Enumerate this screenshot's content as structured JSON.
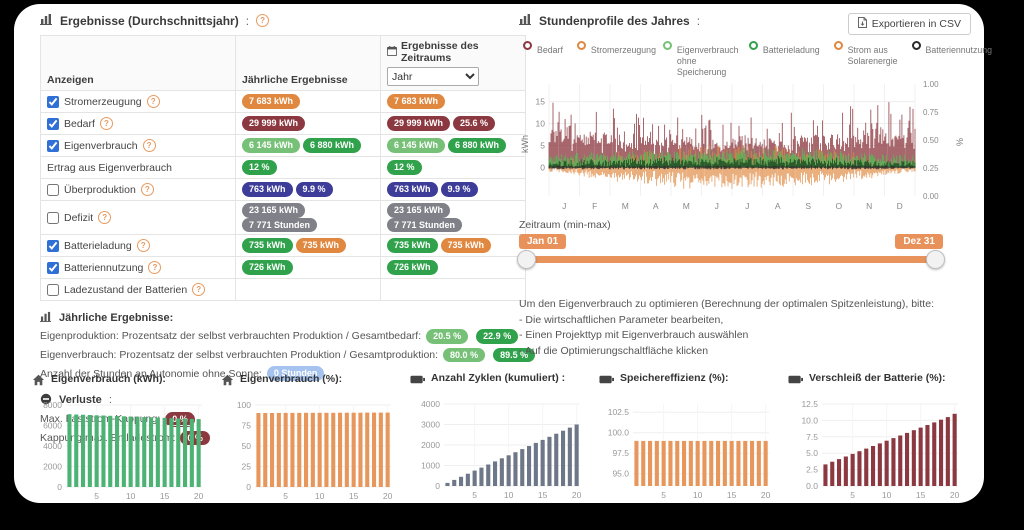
{
  "colors": {
    "orange": "#e0883f",
    "darkred": "#8c3840",
    "lightgreen": "#76c077",
    "green": "#31a24c",
    "indigo": "#3d3d99",
    "gray": "#808089",
    "lightblue": "#a6c3f0",
    "profile_green": "#57b554",
    "profile_darkgreen": "#1d4a22",
    "black": "#2a2a2a",
    "bar_green": "#4db374",
    "bar_orange": "#e8975c",
    "bar_gray": "#6e7787",
    "bar_darkred": "#8c3840",
    "slider_orange": "#e8915a",
    "accent_blue": "#2f6fd6"
  },
  "results_table": {
    "title": "Ergebnisse (Durchschnittsjahr)",
    "title_suffix": ":",
    "columns": {
      "show": "Anzeigen",
      "annual": "Jährliche Ergebnisse",
      "period": "Ergebnisse des Zeitraums",
      "period_select": "Jahr"
    },
    "rows": [
      {
        "label": "Stromerzeugung",
        "checkbox": true,
        "help": true,
        "annual": [
          {
            "text": "7 683 kWh",
            "color": "orange"
          }
        ],
        "period": [
          {
            "text": "7 683 kWh",
            "color": "orange"
          }
        ]
      },
      {
        "label": "Bedarf",
        "checkbox": true,
        "help": true,
        "annual": [
          {
            "text": "29 999 kWh",
            "color": "darkred"
          }
        ],
        "period": [
          {
            "text": "29 999 kWh",
            "color": "darkred"
          },
          {
            "text": "25.6 %",
            "color": "darkred"
          }
        ]
      },
      {
        "label": "Eigenverbrauch",
        "checkbox": true,
        "help": true,
        "annual": [
          {
            "text": "6 145 kWh",
            "color": "lightgreen"
          },
          {
            "text": "6 880 kWh",
            "color": "green"
          }
        ],
        "period": [
          {
            "text": "6 145 kWh",
            "color": "lightgreen"
          },
          {
            "text": "6 880 kWh",
            "color": "green"
          }
        ]
      },
      {
        "label": "Ertrag aus Eigenverbrauch",
        "checkbox": null,
        "help": false,
        "annual": [
          {
            "text": "12 %",
            "color": "green"
          }
        ],
        "period": [
          {
            "text": "12 %",
            "color": "green"
          }
        ]
      },
      {
        "label": "Überproduktion",
        "checkbox": false,
        "help": true,
        "annual": [
          {
            "text": "763 kWh",
            "color": "indigo"
          },
          {
            "text": "9.9 %",
            "color": "indigo"
          }
        ],
        "period": [
          {
            "text": "763 kWh",
            "color": "indigo"
          },
          {
            "text": "9.9 %",
            "color": "indigo"
          }
        ]
      },
      {
        "label": "Defizit",
        "checkbox": false,
        "help": true,
        "annual": [
          {
            "text": "23 165 kWh",
            "color": "gray"
          },
          {
            "text": "7 771 Stunden",
            "color": "gray"
          }
        ],
        "period": [
          {
            "text": "23 165 kWh",
            "color": "gray"
          },
          {
            "text": "7 771 Stunden",
            "color": "gray"
          }
        ]
      },
      {
        "label": "Batterieladung",
        "checkbox": true,
        "help": true,
        "annual": [
          {
            "text": "735 kWh",
            "color": "green"
          },
          {
            "text": "735 kWh",
            "color": "orange"
          }
        ],
        "period": [
          {
            "text": "735 kWh",
            "color": "green"
          },
          {
            "text": "735 kWh",
            "color": "orange"
          }
        ]
      },
      {
        "label": "Batteriennutzung",
        "checkbox": true,
        "help": true,
        "annual": [
          {
            "text": "726 kWh",
            "color": "green"
          }
        ],
        "period": [
          {
            "text": "726 kWh",
            "color": "green"
          }
        ]
      },
      {
        "label": "Ladezustand der Batterien",
        "checkbox": false,
        "help": true,
        "annual": [],
        "period": []
      }
    ]
  },
  "annual_summary": {
    "title": "Jährliche Ergebnisse:",
    "lines": [
      {
        "text": "Eigenproduktion: Prozentsatz der selbst verbrauchten Produktion / Gesamtbedarf:",
        "badges": [
          {
            "text": "20.5 %",
            "color": "lightgreen"
          },
          {
            "text": "22.9 %",
            "color": "green"
          }
        ]
      },
      {
        "text": "Eigenverbrauch: Prozentsatz der selbst verbrauchten Produktion / Gesamtproduktion:",
        "badges": [
          {
            "text": "80.0 %",
            "color": "lightgreen"
          },
          {
            "text": "89.5 %",
            "color": "green"
          }
        ]
      },
      {
        "text": "Anzahl der Stunden an Autonomie ohne Sonne:",
        "badges": [
          {
            "text": "0 Stunden",
            "color": "lightblue"
          }
        ]
      }
    ]
  },
  "losses": {
    "title": "Verluste",
    "title_suffix": ":",
    "lines": [
      {
        "text": "Max. Laststrom-Kappung:",
        "badges": [
          {
            "text": "0 %",
            "color": "darkred"
          }
        ]
      },
      {
        "text": "Kappung max. Entladestrom:",
        "badges": [
          {
            "text": "0 %",
            "color": "darkred"
          }
        ]
      }
    ]
  },
  "hourly_profile": {
    "title": "Stundenprofile des Jahres",
    "title_suffix": ":",
    "export_button": "Exportieren in CSV",
    "legend": [
      {
        "label": "Bedarf",
        "color": "darkred"
      },
      {
        "label": "Stromerzeugung",
        "color": "orange"
      },
      {
        "label": "Eigenverbrauch ohne Speicherung",
        "color": "lightgreen"
      },
      {
        "label": "Batterieladung",
        "color": "green"
      },
      {
        "label": "Strom aus Solarenergie",
        "color": "orange"
      },
      {
        "label": "Batteriennutzung",
        "color": "black"
      }
    ],
    "seed": 987654321,
    "chart_data": {
      "type": "area",
      "description": "Dense hourly profile over one year. Bedarf (dark red) spikes 3-18 kWh all year; Eigenverbrauch ohne Speicherung (light green) 0-5 kWh; Batterieladung (dark green) 0-3 kWh near baseline; Stromerzeugung/Solar (orange) plotted negative to about -5 kWh, strongest March-October, plus positive orange spikes mid-year; Batteriennutzung (black) close to 0.",
      "x_months": [
        "J",
        "F",
        "M",
        "A",
        "M",
        "J",
        "J",
        "A",
        "S",
        "O",
        "N",
        "D"
      ],
      "y_left": {
        "label": "kWh",
        "ticks": [
          0,
          5,
          10,
          15
        ],
        "range": [
          -6.5,
          19
        ]
      },
      "y_right": {
        "label": "%",
        "ticks": [
          "0.00",
          "0.25",
          "0.50",
          "0.75",
          "1.00"
        ]
      }
    },
    "slider": {
      "label": "Zeitraum (min-max)",
      "min_label": "Jan 01",
      "max_label": "Dez 31"
    }
  },
  "optimization_note": {
    "lines": [
      "Um den Eigenverbrauch zu optimieren (Berechnung der optimalen Spitzenleistung), bitte:",
      "- Die wirtschaftlichen Parameter bearbeiten,",
      "- Einen Projekttyp mit Eigenverbrauch auswählen",
      "- Auf die Optimierungschaltfläche klicken"
    ]
  },
  "mini_charts": [
    {
      "title": "Eigenverbrauch (kWh):",
      "icon": "house-icon",
      "color": "bar_green",
      "chart_data": {
        "type": "bar",
        "xlabel_ticks": [
          5,
          10,
          15,
          20
        ],
        "ymin": 0,
        "ymax": 8000,
        "yticks": [
          {
            "v": 0,
            "l": "0"
          },
          {
            "v": 2000,
            "l": "2000"
          },
          {
            "v": 4000,
            "l": "4000"
          },
          {
            "v": 6000,
            "l": "6000"
          },
          {
            "v": 8000,
            "l": "8000"
          }
        ],
        "values": [
          7100,
          7075,
          7050,
          7024,
          6999,
          6974,
          6949,
          6923,
          6898,
          6873,
          6848,
          6822,
          6797,
          6772,
          6747,
          6721,
          6696,
          6671,
          6646,
          6620
        ]
      }
    },
    {
      "title": "Eigenverbrauch (%):",
      "icon": "house-icon",
      "color": "bar_orange",
      "chart_data": {
        "type": "bar",
        "xlabel_ticks": [
          5,
          10,
          15,
          20
        ],
        "ymin": 0,
        "ymax": 100,
        "yticks": [
          {
            "v": 0,
            "l": "0"
          },
          {
            "v": 25,
            "l": "25"
          },
          {
            "v": 50,
            "l": "50"
          },
          {
            "v": 75,
            "l": "75"
          },
          {
            "v": 100,
            "l": "100"
          }
        ],
        "values": [
          90.3,
          90.3,
          90.3,
          90.4,
          90.4,
          90.4,
          90.4,
          90.5,
          90.5,
          90.5,
          90.5,
          90.5,
          90.6,
          90.6,
          90.6,
          90.6,
          90.7,
          90.7,
          90.7,
          90.7
        ]
      }
    },
    {
      "title": "Anzahl Zyklen (kumuliert) :",
      "icon": "battery-icon",
      "color": "bar_gray",
      "chart_data": {
        "type": "bar",
        "xlabel_ticks": [
          5,
          10,
          15,
          20
        ],
        "ymin": 0,
        "ymax": 4000,
        "yticks": [
          {
            "v": 0,
            "l": "0"
          },
          {
            "v": 1000,
            "l": "1000"
          },
          {
            "v": 2000,
            "l": "2000"
          },
          {
            "v": 3000,
            "l": "3000"
          },
          {
            "v": 4000,
            "l": "4000"
          }
        ],
        "values": [
          150,
          300,
          450,
          600,
          750,
          900,
          1050,
          1200,
          1350,
          1500,
          1650,
          1800,
          1950,
          2100,
          2250,
          2400,
          2550,
          2700,
          2850,
          3000
        ]
      }
    },
    {
      "title": "Speichereffizienz (%):",
      "icon": "battery-icon",
      "color": "bar_orange",
      "chart_data": {
        "type": "bar",
        "xlabel_ticks": [
          5,
          10,
          15,
          20
        ],
        "ymin": 93.5,
        "ymax": 103.5,
        "yticks": [
          {
            "v": 95,
            "l": "95.0"
          },
          {
            "v": 97.5,
            "l": "97.5"
          },
          {
            "v": 100,
            "l": "100.0"
          },
          {
            "v": 102.5,
            "l": "102.5"
          }
        ],
        "values": [
          99,
          99,
          99,
          99,
          99,
          99,
          99,
          99,
          99,
          99,
          99,
          99,
          99,
          99,
          99,
          99,
          99,
          99,
          99,
          99
        ]
      }
    },
    {
      "title": "Verschleiß der Batterie (%):",
      "icon": "battery-icon",
      "color": "bar_darkred",
      "chart_data": {
        "type": "bar",
        "xlabel_ticks": [
          5,
          10,
          15,
          20
        ],
        "ymin": 0,
        "ymax": 12.5,
        "yticks": [
          {
            "v": 0,
            "l": "0.0"
          },
          {
            "v": 2.5,
            "l": "2.5"
          },
          {
            "v": 5,
            "l": "5.0"
          },
          {
            "v": 7.5,
            "l": "7.5"
          },
          {
            "v": 10,
            "l": "10.0"
          },
          {
            "v": 12.5,
            "l": "12.5"
          }
        ],
        "values": [
          3.3,
          3.7,
          4.1,
          4.5,
          4.9,
          5.3,
          5.7,
          6.1,
          6.5,
          6.9,
          7.3,
          7.7,
          8.1,
          8.5,
          8.9,
          9.3,
          9.7,
          10.1,
          10.5,
          11.0
        ]
      }
    }
  ]
}
